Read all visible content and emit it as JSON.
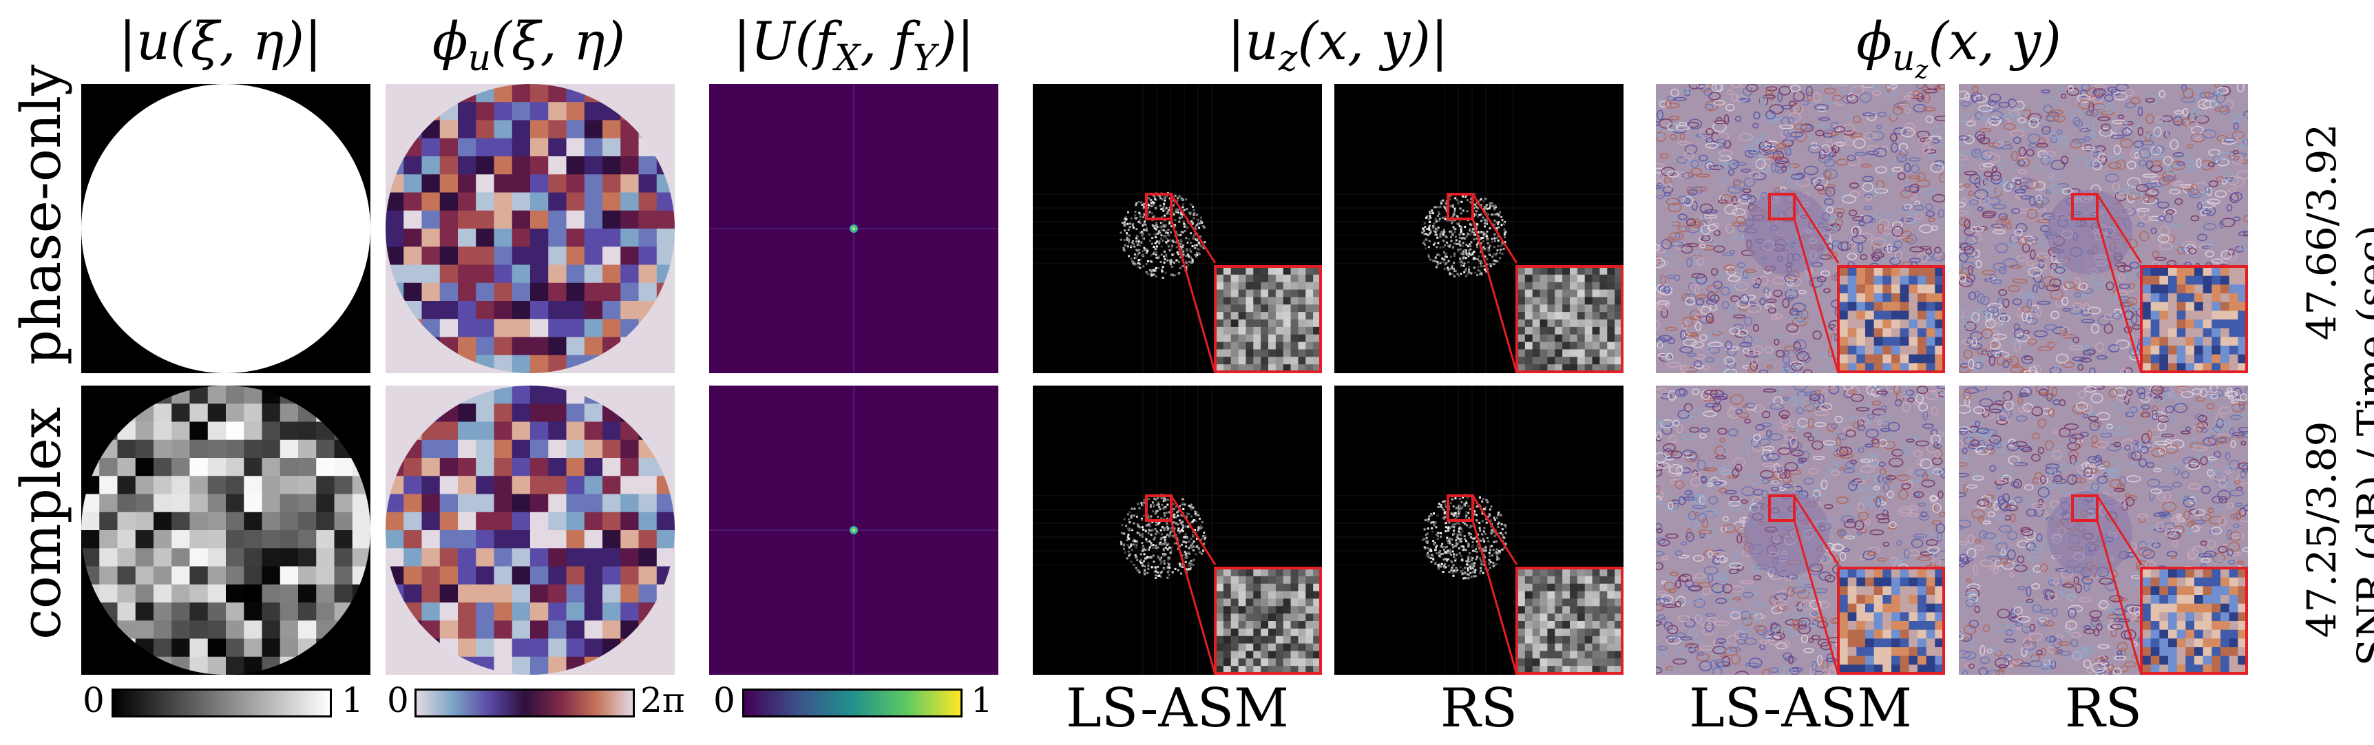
{
  "column_headers": {
    "amp_input": "|u(ξ, η)|",
    "phase_input": "ϕ_u(ξ, η)",
    "spectrum": "|U(f_X, f_Y)|",
    "amp_output": "|u_z(x, y)|",
    "phase_output": "ϕ_{u_z}(x, y)"
  },
  "row_labels": {
    "top": "phase-only",
    "bottom": "complex"
  },
  "method_labels": {
    "lsasm_amp": "LS-ASM",
    "rs_amp": "RS",
    "lsasm_phase": "LS-ASM",
    "rs_phase": "RS"
  },
  "metrics": {
    "top": "47.66/3.92",
    "bottom": "47.25/3.89",
    "caption": "SNR (dB) / Time (sec)"
  },
  "colorbars": [
    {
      "min": "0",
      "max": "1",
      "colormap": "gray"
    },
    {
      "min": "0",
      "max": "2π",
      "colormap": "twilight"
    },
    {
      "min": "0",
      "max": "1",
      "colormap": "viridis"
    }
  ],
  "colors": {
    "zoom_box": "#e31e24",
    "spectrum_bg": "#440154",
    "phase_bg": "#e2d8e1"
  }
}
